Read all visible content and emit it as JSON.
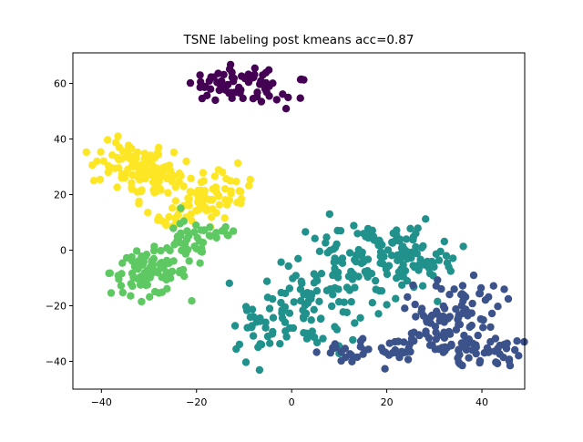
{
  "chart_data": {
    "type": "scatter",
    "title": "TSNE labeling post kmeans acc=0.87",
    "xlabel": "",
    "ylabel": "",
    "xlim": [
      -46,
      49
    ],
    "ylim": [
      -50,
      71
    ],
    "xticks": [
      -40,
      -20,
      0,
      20,
      40
    ],
    "yticks": [
      -40,
      -20,
      0,
      20,
      40,
      60
    ],
    "xtick_labels": [
      "−40",
      "−20",
      "0",
      "20",
      "40"
    ],
    "ytick_labels": [
      "−40",
      "−20",
      "0",
      "20",
      "40",
      "60"
    ],
    "grid": false,
    "legend": "none",
    "clusters": [
      {
        "color": "#440154",
        "centroids": [
          [
            -11,
            61.5,
            5,
            2.6,
            35
          ],
          [
            -4,
            57,
            4,
            3,
            22
          ],
          [
            -16,
            57,
            3,
            2,
            14
          ]
        ]
      },
      {
        "color": "#fde725",
        "centroids": [
          [
            -34,
            31,
            4,
            4,
            70
          ],
          [
            -28,
            26,
            4,
            4,
            60
          ],
          [
            -19,
            18,
            3,
            4,
            40
          ],
          [
            -14,
            22,
            3,
            4,
            25
          ],
          [
            -25,
            11,
            3,
            2,
            15
          ]
        ]
      },
      {
        "color": "#5ec962",
        "centroids": [
          [
            -30,
            -8,
            4,
            4,
            85
          ],
          [
            -22,
            2,
            3,
            4,
            35
          ],
          [
            -16,
            6,
            3,
            2,
            12
          ]
        ]
      },
      {
        "color": "#21918c",
        "centroids": [
          [
            4,
            -20,
            6,
            8,
            80
          ],
          [
            14,
            -5,
            7,
            8,
            90
          ],
          [
            24,
            -2,
            5,
            6,
            55
          ],
          [
            -6,
            -26,
            4,
            6,
            25
          ],
          [
            28,
            -6,
            4,
            4,
            20
          ]
        ]
      },
      {
        "color": "#3b528b",
        "centroids": [
          [
            36,
            -18,
            4,
            5,
            45
          ],
          [
            30,
            -30,
            5,
            6,
            55
          ],
          [
            40,
            -36,
            4,
            3,
            45
          ],
          [
            21,
            -36,
            3,
            3,
            25
          ],
          [
            12,
            -37,
            3,
            2,
            18
          ]
        ]
      }
    ]
  }
}
